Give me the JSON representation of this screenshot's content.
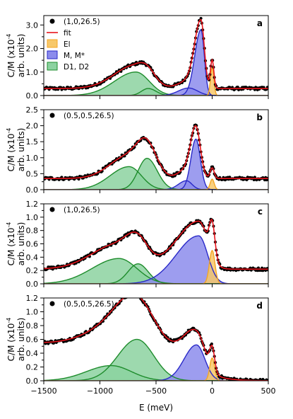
{
  "chart_data": {
    "type": "line",
    "xlabel": "E (meV)",
    "xlim": [
      -1500,
      500
    ],
    "x_ticks": [
      -1500,
      -1000,
      -500,
      0,
      500
    ],
    "x_tick_labels": [
      "-1500",
      "-1000",
      "-500",
      "0",
      "500"
    ],
    "ylabel_text": "C/M (x10",
    "ylabel_exp": "-4",
    "ylabel_units": "arb. units)",
    "colors": {
      "data": "#000000",
      "fit": "#e8141c",
      "El": "#f5a623",
      "M": "#2929c8",
      "D": "#1e8c2c"
    },
    "panels": [
      {
        "tag": "a",
        "ylim": [
          0,
          3.4
        ],
        "y_ticks": [
          0.0,
          1.0,
          2.0,
          3.0
        ],
        "y_tick_labels": [
          "0.0",
          "1.0",
          "2.0",
          "3.0"
        ],
        "legend": [
          {
            "label": "(1,0,26.5)",
            "kind": "marker"
          },
          {
            "label": "fit",
            "kind": "line"
          },
          {
            "label": "El",
            "kind": "patch",
            "color_key": "El"
          },
          {
            "label": "M, M*",
            "kind": "patch",
            "color_key": "M"
          },
          {
            "label": "D1, D2",
            "kind": "patch",
            "color_key": "D"
          }
        ],
        "background": 0.3,
        "components": [
          {
            "color_key": "D",
            "center": -680,
            "amplitude": 1.0,
            "width_left": 190,
            "width_right": 120
          },
          {
            "color_key": "D",
            "center": -570,
            "amplitude": 0.3,
            "width_left": 60,
            "width_right": 70
          },
          {
            "color_key": "M",
            "center": -210,
            "amplitude": 0.32,
            "width_left": 90,
            "width_right": 80
          },
          {
            "color_key": "M",
            "center": -100,
            "amplitude": 2.8,
            "width_left": 55,
            "width_right": 30
          },
          {
            "color_key": "El",
            "center": 0,
            "amplitude": 1.2,
            "width_left": 15,
            "width_right": 15
          }
        ]
      },
      {
        "tag": "b",
        "ylim": [
          0,
          2.5
        ],
        "y_ticks": [
          0.0,
          0.5,
          1.0,
          1.5,
          2.0,
          2.5
        ],
        "y_tick_labels": [
          "0.0",
          "0.5",
          "1.0",
          "1.5",
          "2.0",
          "2.5"
        ],
        "legend": [
          {
            "label": "(0.5,0.5,26.5)",
            "kind": "marker"
          }
        ],
        "background": 0.35,
        "components": [
          {
            "color_key": "D",
            "center": -740,
            "amplitude": 0.72,
            "width_left": 170,
            "width_right": 110
          },
          {
            "color_key": "D",
            "center": -580,
            "amplitude": 0.98,
            "width_left": 80,
            "width_right": 90
          },
          {
            "color_key": "M",
            "center": -230,
            "amplitude": 0.28,
            "width_left": 70,
            "width_right": 50
          },
          {
            "color_key": "M",
            "center": -145,
            "amplitude": 1.58,
            "width_left": 45,
            "width_right": 40
          },
          {
            "color_key": "El",
            "center": 0,
            "amplitude": 0.33,
            "width_left": 18,
            "width_right": 18
          }
        ]
      },
      {
        "tag": "c",
        "ylim": [
          0,
          1.2
        ],
        "y_ticks": [
          0.0,
          0.2,
          0.4,
          0.6,
          0.8,
          1.0,
          1.2
        ],
        "y_tick_labels": [
          "0.0",
          "0.2",
          "0.4",
          "0.6",
          "0.8",
          "1.0",
          "1.2"
        ],
        "legend": [
          {
            "label": "(1,0,26.5)",
            "kind": "marker"
          }
        ],
        "background": 0.22,
        "components": [
          {
            "color_key": "D",
            "center": -830,
            "amplitude": 0.38,
            "width_left": 240,
            "width_right": 160
          },
          {
            "color_key": "D",
            "center": -660,
            "amplitude": 0.3,
            "width_left": 90,
            "width_right": 90
          },
          {
            "color_key": "M",
            "center": -120,
            "amplitude": 0.72,
            "width_left": 200,
            "width_right": 80
          },
          {
            "color_key": "El",
            "center": 0,
            "amplitude": 0.5,
            "width_left": 25,
            "width_right": 25
          }
        ]
      },
      {
        "tag": "d",
        "ylim": [
          0,
          1.2
        ],
        "y_ticks": [
          0.0,
          0.2,
          0.4,
          0.6,
          0.8,
          1.0,
          1.2
        ],
        "y_tick_labels": [
          "0.0",
          "0.2",
          "0.4",
          "0.6",
          "0.8",
          "1.0",
          "1.2"
        ],
        "legend": [
          {
            "label": "(0.5,0.5,26.5)",
            "kind": "marker"
          }
        ],
        "background": 0.0,
        "components": [
          {
            "color_key": "D",
            "center": -900,
            "amplitude": 0.22,
            "width_left": 220,
            "width_right": 180
          },
          {
            "color_key": "D",
            "center": -670,
            "amplitude": 0.6,
            "width_left": 170,
            "width_right": 150
          },
          {
            "color_key": "M",
            "center": -140,
            "amplitude": 0.52,
            "width_left": 110,
            "width_right": 75
          },
          {
            "color_key": "El",
            "center": 0,
            "amplitude": 0.33,
            "width_left": 22,
            "width_right": 22
          }
        ],
        "fit_offset": 0.55
      }
    ]
  }
}
